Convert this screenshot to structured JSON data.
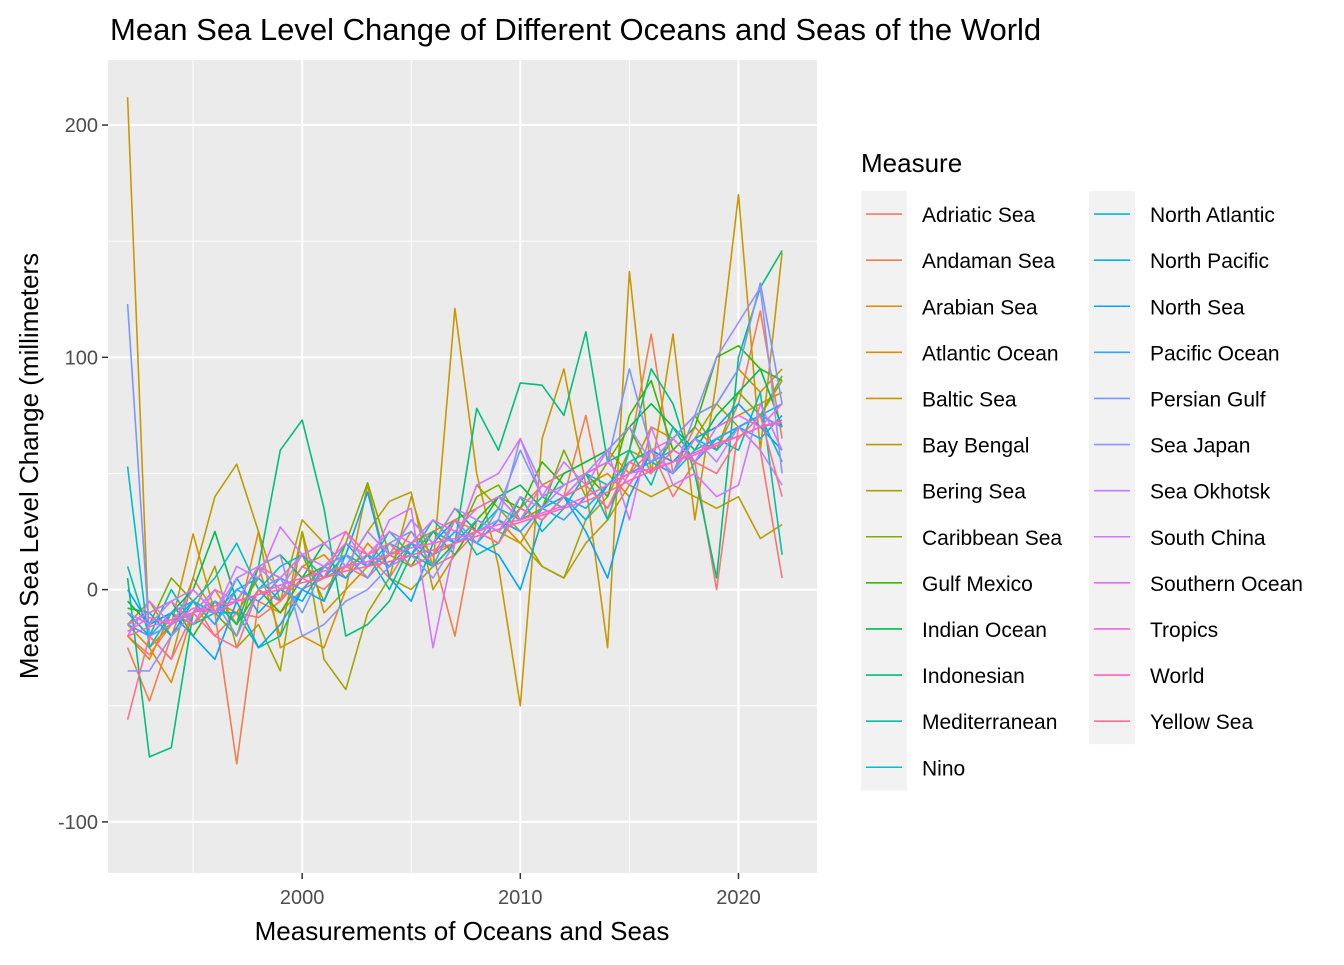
{
  "chart_data": {
    "type": "line",
    "title": "Mean Sea Level Change of Different Oceans and Seas of the World",
    "xlabel": "Measurements of Oceans and Seas",
    "ylabel": "Mean Sea Level Change (millimeters",
    "xlim": [
      1991.1,
      2023.6
    ],
    "ylim": [
      -122,
      228
    ],
    "x_ticks": [
      2000,
      2010,
      2020
    ],
    "y_ticks": [
      -100,
      0,
      100,
      200
    ],
    "x_tick_labels": [
      "2000",
      "2010",
      "2020"
    ],
    "y_tick_labels": [
      "-100",
      "0",
      "100",
      "200"
    ],
    "grid": true,
    "legend": {
      "title": "Measure",
      "placement": "right",
      "columns": 2
    },
    "x": [
      1992,
      1993,
      1994,
      1995,
      1996,
      1997,
      1998,
      1999,
      2000,
      2001,
      2002,
      2003,
      2004,
      2005,
      2006,
      2007,
      2008,
      2009,
      2010,
      2011,
      2012,
      2013,
      2014,
      2015,
      2016,
      2017,
      2018,
      2019,
      2020,
      2021,
      2022
    ],
    "series": [
      {
        "name": "Adriatic Sea",
        "color": "#F8766D",
        "values": [
          -20,
          -28,
          -15,
          -5,
          -20,
          -10,
          -12,
          -5,
          5,
          0,
          10,
          5,
          15,
          20,
          10,
          15,
          25,
          20,
          35,
          30,
          40,
          45,
          35,
          50,
          60,
          40,
          55,
          0,
          70,
          60,
          5
        ]
      },
      {
        "name": "Andaman Sea",
        "color": "#F07E4F",
        "values": [
          -25,
          -48,
          -20,
          5,
          -10,
          -75,
          -5,
          -10,
          0,
          5,
          10,
          15,
          5,
          20,
          15,
          -20,
          30,
          25,
          35,
          45,
          40,
          75,
          30,
          60,
          110,
          50,
          70,
          60,
          80,
          120,
          65
        ]
      },
      {
        "name": "Arabian Sea",
        "color": "#E58700",
        "values": [
          -20,
          -30,
          -10,
          -15,
          -5,
          -10,
          5,
          -5,
          10,
          15,
          5,
          20,
          10,
          25,
          15,
          20,
          25,
          30,
          20,
          35,
          40,
          45,
          50,
          40,
          60,
          55,
          65,
          70,
          75,
          80,
          85
        ]
      },
      {
        "name": "Atlantic Ocean",
        "color": "#D89000",
        "values": [
          -15,
          -25,
          -40,
          -10,
          0,
          -15,
          25,
          -25,
          -20,
          -25,
          0,
          10,
          15,
          20,
          25,
          30,
          35,
          40,
          30,
          45,
          50,
          55,
          60,
          50,
          70,
          65,
          75,
          80,
          95,
          85,
          95
        ]
      },
      {
        "name": "Baltic Sea",
        "color": "#C99800",
        "values": [
          212,
          -25,
          -15,
          24,
          -10,
          -5,
          10,
          -20,
          25,
          -10,
          0,
          45,
          5,
          40,
          10,
          121,
          50,
          10,
          -50,
          65,
          95,
          45,
          -25,
          137,
          50,
          110,
          30,
          90,
          170,
          60,
          145
        ]
      },
      {
        "name": "Bay Bengal",
        "color": "#B79F00",
        "values": [
          -10,
          -20,
          -30,
          5,
          40,
          54,
          25,
          -5,
          30,
          20,
          10,
          25,
          38,
          42,
          0,
          15,
          30,
          25,
          20,
          10,
          5,
          20,
          30,
          45,
          40,
          45,
          40,
          35,
          40,
          22,
          28
        ]
      },
      {
        "name": "Bering Sea",
        "color": "#A3A500",
        "values": [
          -15,
          -5,
          -20,
          -10,
          10,
          -25,
          -15,
          -35,
          25,
          -30,
          -43,
          -10,
          5,
          0,
          10,
          20,
          45,
          35,
          25,
          10,
          5,
          30,
          40,
          60,
          55,
          50,
          65,
          80,
          70,
          75,
          90
        ]
      },
      {
        "name": "Caribbean Sea",
        "color": "#7CAE00",
        "values": [
          -10,
          -15,
          5,
          -5,
          -10,
          -20,
          10,
          5,
          15,
          -5,
          20,
          46,
          15,
          10,
          25,
          20,
          40,
          45,
          30,
          35,
          60,
          40,
          55,
          70,
          50,
          65,
          75,
          60,
          85,
          75,
          92
        ]
      },
      {
        "name": "Gulf Mexico",
        "color": "#39B600",
        "values": [
          -8,
          -10,
          -5,
          -20,
          -5,
          -15,
          0,
          -10,
          5,
          10,
          15,
          5,
          20,
          10,
          25,
          15,
          30,
          40,
          35,
          55,
          45,
          50,
          40,
          75,
          90,
          60,
          70,
          100,
          105,
          95,
          90
        ]
      },
      {
        "name": "Indian Ocean",
        "color": "#00BB4E",
        "values": [
          -5,
          -15,
          -10,
          0,
          25,
          -5,
          10,
          15,
          5,
          20,
          10,
          25,
          15,
          30,
          20,
          35,
          25,
          40,
          45,
          35,
          50,
          55,
          60,
          70,
          80,
          70,
          60,
          75,
          85,
          95,
          70
        ]
      },
      {
        "name": "Indonesian",
        "color": "#00BF7D",
        "values": [
          5,
          -72,
          -68,
          -10,
          -5,
          -15,
          10,
          60,
          73,
          35,
          -20,
          -15,
          -5,
          15,
          10,
          20,
          78,
          60,
          89,
          88,
          75,
          111,
          55,
          60,
          95,
          80,
          50,
          5,
          100,
          130,
          146
        ]
      },
      {
        "name": "Mediterranean",
        "color": "#00C1A3",
        "values": [
          10,
          -20,
          0,
          -15,
          -10,
          -10,
          -25,
          -20,
          0,
          10,
          5,
          15,
          0,
          20,
          10,
          30,
          15,
          20,
          40,
          25,
          35,
          50,
          30,
          60,
          45,
          70,
          55,
          65,
          60,
          85,
          15
        ]
      },
      {
        "name": "Nino",
        "color": "#00BFC4",
        "values": [
          53,
          -25,
          -10,
          -5,
          5,
          20,
          0,
          10,
          15,
          5,
          20,
          10,
          25,
          15,
          30,
          20,
          25,
          35,
          30,
          40,
          35,
          50,
          45,
          55,
          60,
          50,
          65,
          60,
          70,
          75,
          55
        ]
      },
      {
        "name": "North Atlantic",
        "color": "#00BAE0",
        "values": [
          -10,
          -20,
          -15,
          -5,
          -10,
          0,
          5,
          -5,
          10,
          5,
          15,
          10,
          20,
          15,
          25,
          20,
          30,
          25,
          35,
          30,
          40,
          35,
          45,
          50,
          55,
          50,
          60,
          65,
          70,
          75,
          80
        ]
      },
      {
        "name": "North Pacific",
        "color": "#00B0F6",
        "values": [
          -15,
          -10,
          -20,
          -5,
          -15,
          5,
          -10,
          0,
          -5,
          10,
          5,
          15,
          10,
          20,
          15,
          25,
          20,
          30,
          25,
          35,
          40,
          30,
          45,
          55,
          50,
          60,
          55,
          65,
          70,
          65,
          75
        ]
      },
      {
        "name": "North Sea",
        "color": "#00A5FF",
        "values": [
          0,
          -15,
          -10,
          -20,
          -30,
          -5,
          -25,
          -15,
          0,
          -5,
          15,
          42,
          5,
          -5,
          20,
          30,
          20,
          15,
          0,
          30,
          40,
          25,
          5,
          40,
          60,
          55,
          65,
          70,
          80,
          70,
          60
        ]
      },
      {
        "name": "Pacific Ocean",
        "color": "#35A2FF",
        "values": [
          -15,
          -20,
          -10,
          -5,
          -15,
          0,
          -5,
          5,
          0,
          10,
          5,
          15,
          10,
          20,
          15,
          25,
          20,
          30,
          25,
          35,
          30,
          40,
          45,
          50,
          55,
          60,
          55,
          65,
          70,
          75,
          70
        ]
      },
      {
        "name": "Persian Gulf",
        "color": "#7997FF",
        "values": [
          123,
          -20,
          -15,
          -10,
          -5,
          -20,
          0,
          5,
          -10,
          10,
          15,
          5,
          20,
          25,
          10,
          30,
          20,
          35,
          60,
          40,
          45,
          50,
          55,
          95,
          60,
          50,
          75,
          80,
          95,
          132,
          80
        ]
      },
      {
        "name": "Sea Japan",
        "color": "#9590FF",
        "values": [
          -35,
          -35,
          -20,
          -10,
          0,
          -5,
          10,
          15,
          -20,
          -15,
          -5,
          0,
          10,
          15,
          5,
          20,
          25,
          30,
          65,
          45,
          40,
          50,
          60,
          70,
          55,
          65,
          75,
          100,
          115,
          130,
          50
        ]
      },
      {
        "name": "Sea Okhotsk",
        "color": "#B983FF",
        "values": [
          -10,
          -15,
          -5,
          0,
          -10,
          5,
          10,
          0,
          15,
          20,
          10,
          25,
          15,
          30,
          20,
          35,
          30,
          25,
          40,
          35,
          45,
          50,
          55,
          45,
          60,
          50,
          65,
          55,
          70,
          60,
          45
        ]
      },
      {
        "name": "South China",
        "color": "#D575FE",
        "values": [
          -20,
          -5,
          -15,
          0,
          -10,
          10,
          5,
          27,
          15,
          20,
          25,
          10,
          30,
          35,
          -25,
          20,
          45,
          50,
          65,
          40,
          55,
          45,
          60,
          30,
          70,
          45,
          50,
          40,
          45,
          80,
          60
        ]
      },
      {
        "name": "Southern Ocean",
        "color": "#E76BF3",
        "values": [
          -15,
          -10,
          -5,
          -15,
          0,
          -5,
          10,
          5,
          15,
          10,
          20,
          15,
          25,
          20,
          30,
          25,
          35,
          40,
          30,
          45,
          40,
          50,
          55,
          45,
          60,
          65,
          55,
          70,
          75,
          70,
          80
        ]
      },
      {
        "name": "Tropics",
        "color": "#F763E0",
        "values": [
          -18,
          -12,
          -15,
          -8,
          -10,
          -5,
          -2,
          2,
          5,
          8,
          10,
          12,
          15,
          18,
          20,
          22,
          25,
          28,
          30,
          33,
          36,
          40,
          45,
          50,
          52,
          55,
          58,
          62,
          66,
          70,
          72
        ]
      },
      {
        "name": "World",
        "color": "#FF62BC",
        "values": [
          -20,
          -16,
          -13,
          -10,
          -7,
          -5,
          -2,
          0,
          3,
          5,
          8,
          10,
          12,
          15,
          17,
          20,
          23,
          26,
          29,
          32,
          35,
          38,
          42,
          47,
          51,
          55,
          59,
          63,
          66,
          70,
          73
        ]
      },
      {
        "name": "Yellow Sea",
        "color": "#FF6C91",
        "values": [
          -56,
          -20,
          -30,
          -10,
          -20,
          -25,
          0,
          -5,
          10,
          5,
          25,
          15,
          20,
          10,
          15,
          30,
          25,
          20,
          35,
          30,
          40,
          45,
          35,
          55,
          50,
          60,
          55,
          50,
          65,
          75,
          40
        ]
      }
    ]
  }
}
